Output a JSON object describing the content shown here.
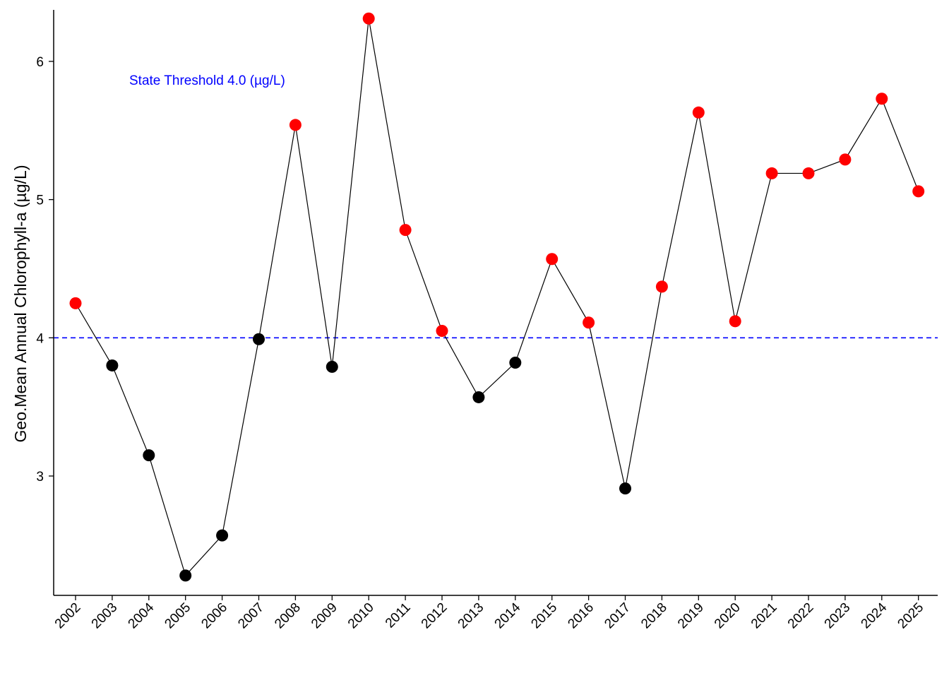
{
  "chart_data": {
    "type": "line",
    "title": "",
    "xlabel": "",
    "ylabel": "Geo.Mean Annual Chlorophyll-a (µg/L)",
    "categories": [
      "2002",
      "2003",
      "2004",
      "2005",
      "2006",
      "2007",
      "2008",
      "2009",
      "2010",
      "2011",
      "2012",
      "2013",
      "2014",
      "2015",
      "2016",
      "2017",
      "2018",
      "2019",
      "2020",
      "2021",
      "2022",
      "2023",
      "2024",
      "2025"
    ],
    "values": [
      4.25,
      3.8,
      3.15,
      2.28,
      2.57,
      3.99,
      5.54,
      3.79,
      6.31,
      4.78,
      4.05,
      3.57,
      3.82,
      4.57,
      4.11,
      2.91,
      4.37,
      5.63,
      4.12,
      5.19,
      5.19,
      5.29,
      5.73,
      5.06
    ],
    "ylim": [
      2.1,
      6.52
    ],
    "yticks": [
      3,
      4,
      5,
      6
    ],
    "grid": false,
    "threshold": {
      "value": 4.0,
      "label": "State Threshold 4.0 (µg/L)",
      "color": "#0000ff"
    },
    "colors": {
      "above_threshold": "#ff0000",
      "at_or_below_threshold": "#000000",
      "line": "#000000"
    }
  }
}
